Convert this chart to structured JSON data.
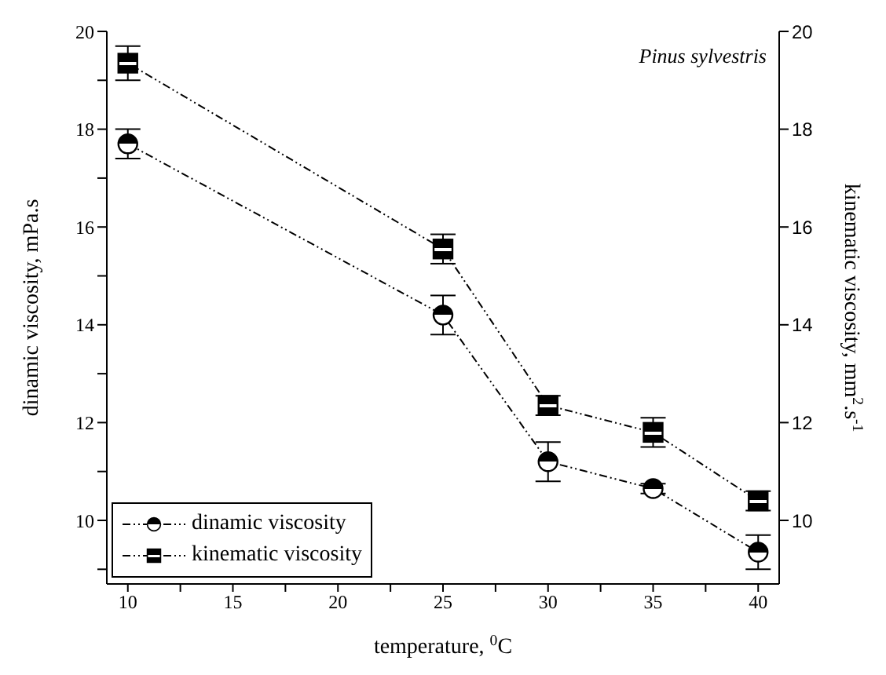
{
  "chart_data": {
    "type": "line",
    "xlabel": "temperature, $^{0}$C",
    "ylabel": "dinamic viscosity, mPa.s",
    "y2label": "kinematic viscosity, mm$^{2}$.s$^{-1}$",
    "annotations": [
      "Pinus sylvestris"
    ],
    "x": [
      10,
      25,
      30,
      35,
      40
    ],
    "series": [
      {
        "name": "dinamic viscosity",
        "color": "#000000",
        "marker": "circle",
        "values": [
          17.7,
          14.2,
          11.2,
          10.65,
          9.35
        ],
        "errors": [
          0.3,
          0.4,
          0.4,
          0.1,
          0.35
        ]
      },
      {
        "name": "kinematic viscosity",
        "color": "#000000",
        "marker": "square",
        "axis": "y2",
        "values": [
          19.35,
          15.55,
          12.35,
          11.8,
          10.4
        ],
        "errors": [
          0.35,
          0.3,
          0.2,
          0.3,
          0.2
        ]
      }
    ],
    "line_style": "dashed",
    "xlim": [
      9,
      41
    ],
    "xticks": [
      10,
      {
        "value": 12.5,
        "label": null
      },
      15,
      {
        "value": 17.5,
        "label": null
      },
      20,
      {
        "value": 22.5,
        "label": null
      },
      25,
      {
        "value": 27.5,
        "label": null
      },
      30,
      {
        "value": 32.5,
        "label": null
      },
      35,
      {
        "value": 37.5,
        "label": null
      },
      40
    ],
    "ylim": [
      8.7,
      20
    ],
    "yticks": [
      {
        "value": 9,
        "label": null
      },
      10,
      {
        "value": 11,
        "label": null
      },
      12,
      {
        "value": 13,
        "label": null
      },
      14,
      {
        "value": 15,
        "label": null
      },
      16,
      {
        "value": 17,
        "label": null
      },
      18,
      {
        "value": 19,
        "label": null
      },
      20
    ],
    "y2lim": [
      8.7,
      20
    ],
    "y2ticks": [
      10,
      12,
      14,
      16,
      18,
      20
    ],
    "legend": "bottom left",
    "grid": false
  }
}
